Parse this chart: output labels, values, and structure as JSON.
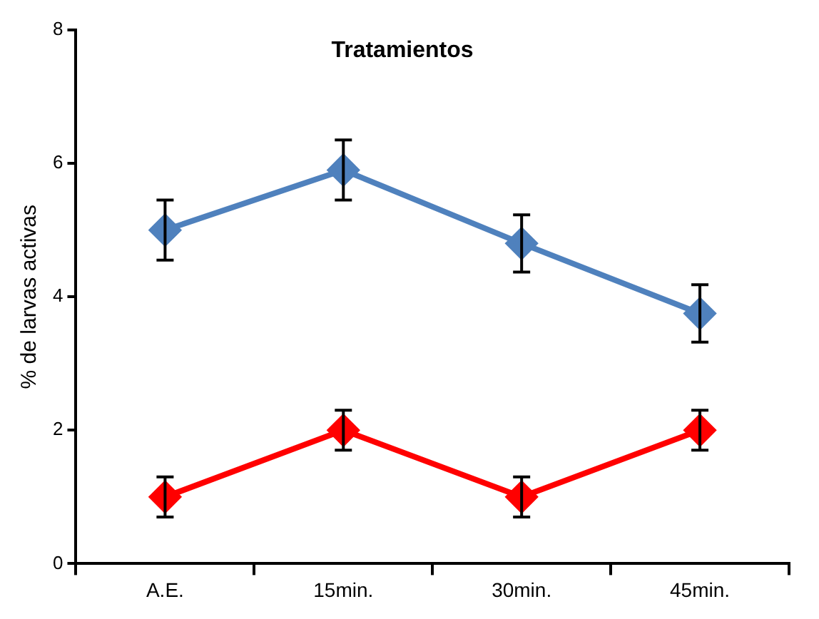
{
  "chart_data": {
    "type": "line",
    "title": "Tratamientos",
    "ylabel": "% de larvas activas",
    "categories": [
      "A.E.",
      "15min.",
      "30min.",
      "45min."
    ],
    "series": [
      {
        "color": "#4f81bd",
        "values": [
          5.0,
          5.9,
          4.8,
          3.75
        ],
        "errors": [
          0.45,
          0.45,
          0.43,
          0.43
        ]
      },
      {
        "color": "#ff0000",
        "values": [
          1.0,
          2.0,
          1.0,
          2.0
        ],
        "errors": [
          0.3,
          0.3,
          0.3,
          0.3
        ]
      }
    ],
    "ylim": [
      0,
      8
    ],
    "yticks": [
      0,
      2,
      4,
      6,
      8
    ],
    "grid": false,
    "legend": false,
    "marker": "diamond",
    "line_style": "solid"
  }
}
